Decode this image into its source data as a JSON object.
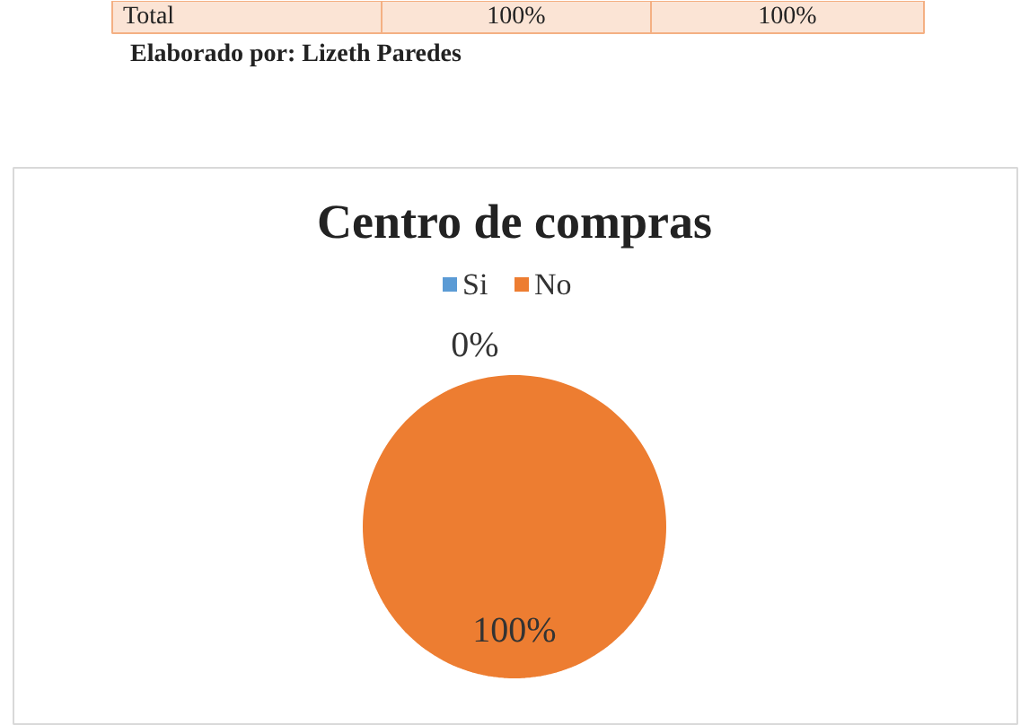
{
  "chart_data": {
    "type": "pie",
    "title": "Centro de compras",
    "categories": [
      "Si",
      "No"
    ],
    "values": [
      0,
      100
    ],
    "colors": [
      "#5b9bd5",
      "#ed7d31"
    ],
    "value_labels": [
      "0%",
      "100%"
    ],
    "legend": "top",
    "annotations": [
      "Total",
      "100%",
      "100%",
      "Elaborado por: Lizeth Paredes"
    ]
  }
}
